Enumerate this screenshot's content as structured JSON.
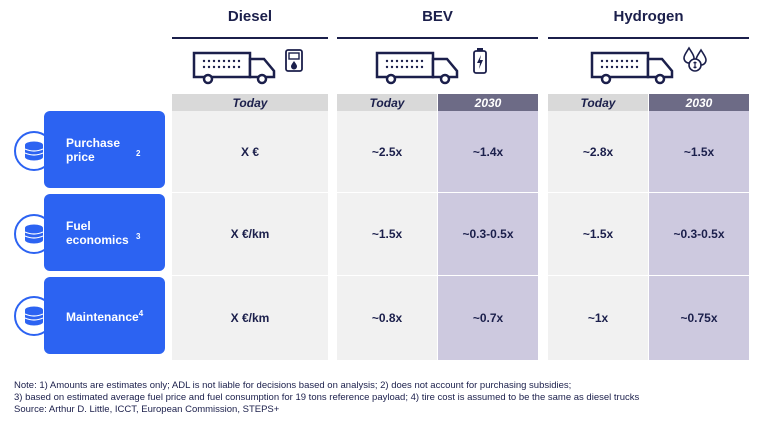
{
  "groups": {
    "diesel": {
      "title": "Diesel",
      "headers": [
        "Today"
      ],
      "icon": "fuel-pump-icon"
    },
    "bev": {
      "title": "BEV",
      "headers": [
        "Today",
        "2030"
      ],
      "icon": "battery-icon"
    },
    "hydrogen": {
      "title": "Hydrogen",
      "headers": [
        "Today",
        "2030"
      ],
      "icon": "hydrogen-drops-icon"
    }
  },
  "rows": [
    {
      "label": "Purchase price",
      "footnote": "2",
      "values": [
        "X €",
        "~2.5x",
        "~1.4x",
        "~2.8x",
        "~1.5x"
      ]
    },
    {
      "label": "Fuel economics",
      "footnote": "3",
      "values": [
        "X €/km",
        "~1.5x",
        "~0.3-0.5x",
        "~1.5x",
        "~0.3-0.5x"
      ]
    },
    {
      "label": "Maintenance",
      "footnote": "4",
      "values": [
        "X €/km",
        "~0.8x",
        "~0.7x",
        "~1x",
        "~0.75x"
      ]
    }
  ],
  "notes": [
    "Note: 1) Amounts are estimates only; ADL is not liable for decisions based on analysis; 2) does not account for purchasing subsidies;",
    "3) based on estimated average fuel price and fuel consumption for 19 tons reference payload; 4) tire cost is assumed to be the same as diesel trucks",
    "Source: Arthur D. Little, ICCT, European Commission, STEPS+"
  ],
  "colors": {
    "navy": "#1b1f4b",
    "blue": "#2c63f2",
    "today_bg": "#f1f1f1",
    "today_header": "#d9d9d9",
    "y2030_bg": "#cdc9df",
    "y2030_header": "#6d6b86"
  }
}
